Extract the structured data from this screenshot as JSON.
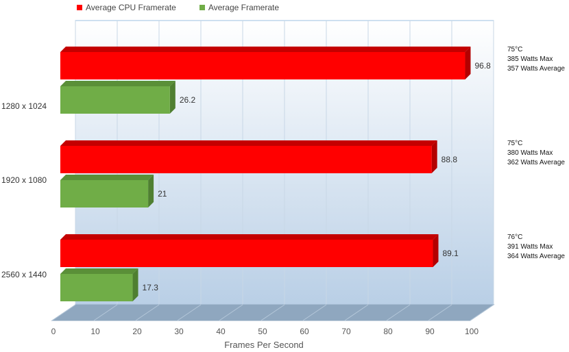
{
  "chart_data": {
    "type": "bar",
    "orientation": "horizontal",
    "categories": [
      "1280 x 1024",
      "1920 x 1080",
      "2560 x 1440"
    ],
    "series": [
      {
        "name": "Average CPU Framerate",
        "color": "#ff0000",
        "values": [
          96.8,
          88.8,
          89.1
        ]
      },
      {
        "name": "Average Framerate",
        "color": "#70ad47",
        "values": [
          26.2,
          21,
          17.3
        ]
      }
    ],
    "xlabel": "Frames Per Second",
    "xlim": [
      0,
      100
    ],
    "xticks": [
      "0",
      "10",
      "20",
      "30",
      "40",
      "50",
      "60",
      "70",
      "80",
      "90",
      "100"
    ],
    "grid": true,
    "legend_position": "top-left",
    "annotations": [
      {
        "temp": "75°C",
        "max": "385 Watts Max",
        "avg": "357 Watts Average"
      },
      {
        "temp": "75°C",
        "max": "380 Watts Max",
        "avg": "362 Watts Average"
      },
      {
        "temp": "76°C",
        "max": "391 Watts Max",
        "avg": "364 Watts Average"
      }
    ]
  }
}
